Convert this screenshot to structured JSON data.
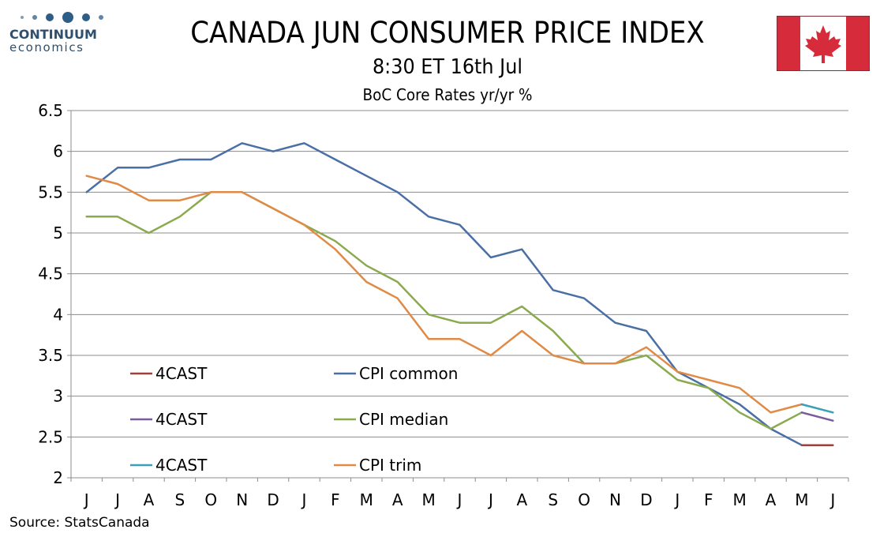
{
  "header": {
    "title": "CANADA JUN CONSUMER PRICE INDEX",
    "subtitle": "8:30 ET 16th Jul",
    "chart_caption": "BoC Core Rates yr/yr %"
  },
  "logo": {
    "name": "CONTINUUM",
    "sub": "economics",
    "color": "#2e5d86"
  },
  "flag": {
    "red": "#d52b3a",
    "white": "#ffffff"
  },
  "footer": {
    "source": "Source: StatsCanada"
  },
  "chart_data": {
    "type": "line",
    "title": "BoC Core Rates yr/yr %",
    "xlabel": "",
    "ylabel": "",
    "categories": [
      "J",
      "J",
      "A",
      "S",
      "O",
      "N",
      "D",
      "J",
      "F",
      "M",
      "A",
      "M",
      "J",
      "J",
      "A",
      "S",
      "O",
      "N",
      "D",
      "J",
      "F",
      "M",
      "A",
      "M",
      "J"
    ],
    "ylim": [
      2,
      6.5
    ],
    "yticks": [
      "6.5",
      "6",
      "5.5",
      "5",
      "4.5",
      "4",
      "3.5",
      "3",
      "2.5",
      "2"
    ],
    "grid": true,
    "legend_placement": "bottom-left",
    "series": [
      {
        "name": "CPI common",
        "color": "#4a6fa5",
        "values": [
          5.5,
          5.8,
          5.8,
          5.9,
          5.9,
          6.1,
          6.0,
          6.1,
          5.9,
          5.7,
          5.5,
          5.2,
          5.1,
          4.7,
          4.8,
          4.3,
          4.2,
          3.9,
          3.8,
          3.3,
          3.1,
          2.9,
          2.6,
          2.4,
          null
        ]
      },
      {
        "name": "CPI median",
        "color": "#8aaa4e",
        "values": [
          5.2,
          5.2,
          5.0,
          5.2,
          5.5,
          5.5,
          5.3,
          5.1,
          4.9,
          4.6,
          4.4,
          4.0,
          3.9,
          3.9,
          4.1,
          3.8,
          3.4,
          3.4,
          3.5,
          3.2,
          3.1,
          2.8,
          2.6,
          2.8,
          null
        ]
      },
      {
        "name": "CPI trim",
        "color": "#e08a45",
        "values": [
          5.7,
          5.6,
          5.4,
          5.4,
          5.5,
          5.5,
          5.3,
          5.1,
          4.8,
          4.4,
          4.2,
          3.7,
          3.7,
          3.5,
          3.8,
          3.5,
          3.4,
          3.4,
          3.6,
          3.3,
          3.2,
          3.1,
          2.8,
          2.9,
          null
        ]
      },
      {
        "name": "4CAST",
        "color": "#a0403a",
        "values": [
          null,
          null,
          null,
          null,
          null,
          null,
          null,
          null,
          null,
          null,
          null,
          null,
          null,
          null,
          null,
          null,
          null,
          null,
          null,
          null,
          null,
          null,
          null,
          2.4,
          2.4
        ]
      },
      {
        "name": "4CAST",
        "color": "#7b5b99",
        "values": [
          null,
          null,
          null,
          null,
          null,
          null,
          null,
          null,
          null,
          null,
          null,
          null,
          null,
          null,
          null,
          null,
          null,
          null,
          null,
          null,
          null,
          null,
          null,
          2.8,
          2.7
        ]
      },
      {
        "name": "4CAST",
        "color": "#3aa0b8",
        "values": [
          null,
          null,
          null,
          null,
          null,
          null,
          null,
          null,
          null,
          null,
          null,
          null,
          null,
          null,
          null,
          null,
          null,
          null,
          null,
          null,
          null,
          null,
          null,
          2.9,
          2.8
        ]
      }
    ],
    "legend": [
      {
        "label": "4CAST",
        "color": "#a0403a"
      },
      {
        "label": "CPI common",
        "color": "#4a6fa5"
      },
      {
        "label": "4CAST",
        "color": "#7b5b99"
      },
      {
        "label": "CPI median",
        "color": "#8aaa4e"
      },
      {
        "label": "4CAST",
        "color": "#3aa0b8"
      },
      {
        "label": "CPI trim",
        "color": "#e08a45"
      }
    ]
  }
}
